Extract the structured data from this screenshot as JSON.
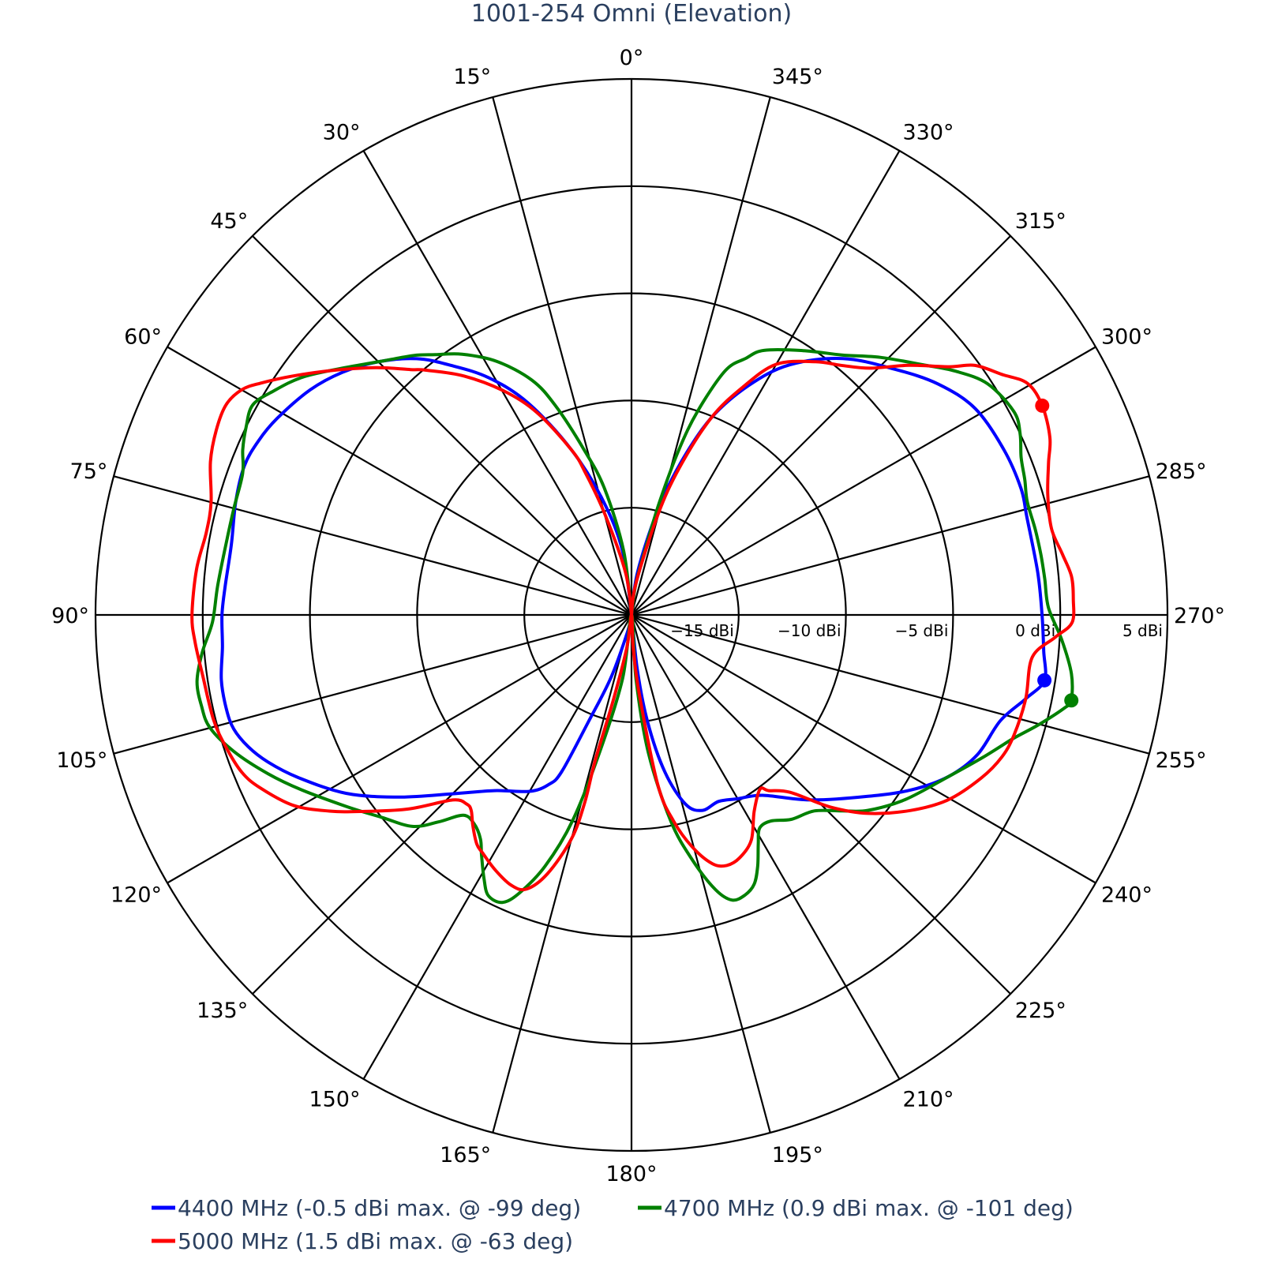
{
  "chart_data": {
    "type": "polar-line",
    "title": "1001-254 Omni (Elevation)",
    "angular_axis": {
      "direction": "counterclockwise",
      "rotation": 90,
      "tick_step_deg": 15,
      "tick_labels": [
        "0°",
        "15°",
        "30°",
        "45°",
        "60°",
        "75°",
        "90°",
        "105°",
        "120°",
        "135°",
        "150°",
        "165°",
        "180°",
        "195°",
        "210°",
        "225°",
        "240°",
        "255°",
        "270°",
        "285°",
        "300°",
        "315°",
        "330°",
        "345°"
      ]
    },
    "radial_axis": {
      "range": [
        -20,
        5
      ],
      "unit": "dBi",
      "tick_values": [
        -15,
        -10,
        -5,
        0,
        5
      ],
      "tick_labels": [
        "−15 dBi",
        "−10 dBi",
        "−5 dBi",
        "0 dBi",
        "5 dBi"
      ],
      "tick_angle_deg": 270
    },
    "grid": true,
    "legend_position": "bottom",
    "series": [
      {
        "name": "4400 MHz (-0.5 dBi max. @ -99 deg)",
        "color": "#0000ff",
        "max": {
          "angle": 261,
          "value": -0.5
        },
        "points": [
          [
            0,
            -20
          ],
          [
            8,
            -17
          ],
          [
            14,
            -14.5
          ],
          [
            20,
            -11.8
          ],
          [
            26,
            -9
          ],
          [
            31,
            -7.1
          ],
          [
            36,
            -5.6
          ],
          [
            40,
            -4.4
          ],
          [
            45,
            -3.3
          ],
          [
            50,
            -2.4
          ],
          [
            55,
            -1.7
          ],
          [
            61,
            -1.1
          ],
          [
            65,
            -0.8
          ],
          [
            69,
            -0.65
          ],
          [
            74,
            -0.8
          ],
          [
            80,
            -1.05
          ],
          [
            86,
            -1.0
          ],
          [
            90,
            -0.9
          ],
          [
            94.5,
            -0.86
          ],
          [
            99,
            -0.63
          ],
          [
            103,
            -0.6
          ],
          [
            106,
            -0.7
          ],
          [
            109,
            -1.1
          ],
          [
            112,
            -1.7
          ],
          [
            116,
            -2.7
          ],
          [
            122,
            -4.3
          ],
          [
            128,
            -6.2
          ],
          [
            135,
            -8.2
          ],
          [
            142,
            -9.6
          ],
          [
            150,
            -10.5
          ],
          [
            154,
            -11.2
          ],
          [
            156,
            -12
          ],
          [
            158,
            -14.6
          ],
          [
            162,
            -17
          ],
          [
            170,
            -19.5
          ],
          [
            180,
            -20
          ],
          [
            186,
            -17.5
          ],
          [
            188.5,
            -15
          ],
          [
            192,
            -12.5
          ],
          [
            196,
            -10.8
          ],
          [
            200,
            -10.3
          ],
          [
            205,
            -10.4
          ],
          [
            210,
            -10.1
          ],
          [
            216,
            -9.6
          ],
          [
            224,
            -8
          ],
          [
            232.5,
            -6.1
          ],
          [
            238,
            -4.6
          ],
          [
            243,
            -3.4
          ],
          [
            248,
            -2.6
          ],
          [
            254,
            -2.1
          ],
          [
            258,
            -1.2
          ],
          [
            261,
            -0.5
          ],
          [
            265,
            -0.7
          ],
          [
            270,
            -0.85
          ],
          [
            276,
            -0.95
          ],
          [
            284,
            -1.0
          ],
          [
            288,
            -0.9
          ],
          [
            294,
            -1.0
          ],
          [
            301,
            -1.3
          ],
          [
            307,
            -2.1
          ],
          [
            313,
            -3.2
          ],
          [
            320.5,
            -4.5
          ],
          [
            327.7,
            -6.2
          ],
          [
            333,
            -8
          ],
          [
            338,
            -10.1
          ],
          [
            342,
            -12.5
          ],
          [
            346,
            -15
          ],
          [
            352,
            -18
          ],
          [
            360,
            -20
          ]
        ]
      },
      {
        "name": "4700 MHz (0.9 dBi max. @ -101 deg)",
        "color": "#008000",
        "max": {
          "angle": 259,
          "value": 0.9
        },
        "points": [
          [
            0,
            -20
          ],
          [
            7,
            -17
          ],
          [
            12,
            -14
          ],
          [
            16,
            -12
          ],
          [
            20,
            -9.6
          ],
          [
            23,
            -8.1
          ],
          [
            28,
            -6.6
          ],
          [
            33,
            -5.5
          ],
          [
            37,
            -4.8
          ],
          [
            40,
            -4.2
          ],
          [
            44,
            -3.5
          ],
          [
            49,
            -2.4
          ],
          [
            54,
            -1.1
          ],
          [
            58,
            -0.3
          ],
          [
            61,
            0.2
          ],
          [
            64,
            0.0
          ],
          [
            67,
            -0.3
          ],
          [
            70,
            -0.7
          ],
          [
            75,
            -0.8
          ],
          [
            80,
            -0.8
          ],
          [
            86,
            -0.65
          ],
          [
            91,
            -0.45
          ],
          [
            95,
            0.1
          ],
          [
            98.7,
            0.5
          ],
          [
            102,
            0.5
          ],
          [
            105,
            0.35
          ],
          [
            109,
            -0.4
          ],
          [
            113.6,
            -1.5
          ],
          [
            118,
            -2.6
          ],
          [
            124,
            -4
          ],
          [
            129,
            -5
          ],
          [
            134,
            -5.8
          ],
          [
            137,
            -6.8
          ],
          [
            140,
            -7.8
          ],
          [
            143,
            -7.8
          ],
          [
            146,
            -7.4
          ],
          [
            148,
            -6.8
          ],
          [
            150.8,
            -5.9
          ],
          [
            153,
            -5.3
          ],
          [
            155.8,
            -5.3
          ],
          [
            158,
            -6
          ],
          [
            161,
            -7.6
          ],
          [
            164,
            -10
          ],
          [
            167,
            -13.5
          ],
          [
            172,
            -17
          ],
          [
            180,
            -20
          ],
          [
            184,
            -17
          ],
          [
            187,
            -13.5
          ],
          [
            190.8,
            -10.2
          ],
          [
            194,
            -8.2
          ],
          [
            197,
            -6.6
          ],
          [
            199.4,
            -5.9
          ],
          [
            202,
            -5.9
          ],
          [
            204.5,
            -6.2
          ],
          [
            206.7,
            -6.9
          ],
          [
            209,
            -7.8
          ],
          [
            211,
            -8.4
          ],
          [
            214,
            -8.4
          ],
          [
            218,
            -7.9
          ],
          [
            223,
            -7.5
          ],
          [
            227,
            -6.6
          ],
          [
            230.4,
            -5.7
          ],
          [
            236,
            -4.6
          ],
          [
            243,
            -3.4
          ],
          [
            248,
            -2.3
          ],
          [
            252,
            -1.3
          ],
          [
            255,
            -0.3
          ],
          [
            258,
            0.7
          ],
          [
            259,
            0.9
          ],
          [
            262.4,
            0.7
          ],
          [
            266.7,
            0.1
          ],
          [
            271,
            -0.55
          ],
          [
            275,
            -0.65
          ],
          [
            278.4,
            -0.7
          ],
          [
            282,
            -0.75
          ],
          [
            286,
            -0.8
          ],
          [
            289,
            -0.6
          ],
          [
            292,
            -0.4
          ],
          [
            295,
            0.0
          ],
          [
            298,
            0.2
          ],
          [
            303,
            -0.2
          ],
          [
            307,
            -1.1
          ],
          [
            310.7,
            -2.1
          ],
          [
            316,
            -3.3
          ],
          [
            321,
            -4.4
          ],
          [
            327,
            -5.3
          ],
          [
            333.4,
            -6.2
          ],
          [
            336,
            -6.9
          ],
          [
            339,
            -7.8
          ],
          [
            342,
            -10
          ],
          [
            344,
            -12
          ],
          [
            346,
            -14.5
          ],
          [
            347.7,
            -16.5
          ],
          [
            352,
            -18.5
          ],
          [
            360,
            -20
          ]
        ]
      },
      {
        "name": "5000 MHz (1.5 dBi max. @ -63 deg)",
        "color": "#ff0000",
        "max": {
          "angle": 297,
          "value": 1.5
        },
        "points": [
          [
            0,
            -20
          ],
          [
            8,
            -18
          ],
          [
            14.7,
            -15.2
          ],
          [
            18,
            -13
          ],
          [
            20,
            -11.8
          ],
          [
            25,
            -9.6
          ],
          [
            29.6,
            -8
          ],
          [
            35,
            -6.4
          ],
          [
            40,
            -5.1
          ],
          [
            42,
            -4.6
          ],
          [
            46,
            -3.4
          ],
          [
            51,
            -1.9
          ],
          [
            55,
            -0.6
          ],
          [
            58,
            0.4
          ],
          [
            60,
            1.0
          ],
          [
            62.6,
            1.3
          ],
          [
            66,
            1.2
          ],
          [
            70,
            0.9
          ],
          [
            75,
            0.3
          ],
          [
            79,
            0.2
          ],
          [
            84,
            0.4
          ],
          [
            90,
            0.5
          ],
          [
            93.5,
            0.4
          ],
          [
            98,
            0.2
          ],
          [
            104,
            0.1
          ],
          [
            108,
            -0.1
          ],
          [
            112,
            -0.4
          ],
          [
            115,
            -0.9
          ],
          [
            119.4,
            -1.9
          ],
          [
            123,
            -3.2
          ],
          [
            126,
            -4.4
          ],
          [
            131,
            -6.2
          ],
          [
            136,
            -8
          ],
          [
            139,
            -8.3
          ],
          [
            140.7,
            -8.2
          ],
          [
            143,
            -7.7
          ],
          [
            146,
            -7.1
          ],
          [
            148,
            -6.9
          ],
          [
            152,
            -6.5
          ],
          [
            156,
            -6.2
          ],
          [
            159,
            -6.3
          ],
          [
            162,
            -7.3
          ],
          [
            165,
            -9.2
          ],
          [
            166,
            -11
          ],
          [
            166,
            -13
          ],
          [
            168,
            -16
          ],
          [
            172,
            -18.5
          ],
          [
            180,
            -20
          ],
          [
            183,
            -18.5
          ],
          [
            185.6,
            -16.3
          ],
          [
            188.8,
            -12
          ],
          [
            191.5,
            -10.2
          ],
          [
            194.7,
            -8.8
          ],
          [
            198,
            -7.8
          ],
          [
            200.8,
            -7.5
          ],
          [
            204,
            -7.6
          ],
          [
            208,
            -8.1
          ],
          [
            212,
            -9.2
          ],
          [
            216.4,
            -9.9
          ],
          [
            218,
            -9.6
          ],
          [
            221.8,
            -8.9
          ],
          [
            226,
            -7.1
          ],
          [
            230,
            -5.6
          ],
          [
            235,
            -4.1
          ],
          [
            239.7,
            -2.9
          ],
          [
            245,
            -2.0
          ],
          [
            249,
            -1.5
          ],
          [
            252.6,
            -1.3
          ],
          [
            258,
            -1.2
          ],
          [
            264,
            -1.2
          ],
          [
            267,
            -0.2
          ],
          [
            269,
            0.55
          ],
          [
            272,
            0.62
          ],
          [
            275,
            0.6
          ],
          [
            278,
            0.3
          ],
          [
            281.6,
            0.0
          ],
          [
            286,
            0.2
          ],
          [
            290,
            0.7
          ],
          [
            293,
            1.2
          ],
          [
            297,
            1.5
          ],
          [
            300.3,
            1.4
          ],
          [
            303,
            0.6
          ],
          [
            306,
            -0.2
          ],
          [
            308,
            -1.2
          ],
          [
            312,
            -2.6
          ],
          [
            316,
            -4
          ],
          [
            320,
            -4.8
          ],
          [
            324,
            -5.4
          ],
          [
            330,
            -6.5
          ],
          [
            334,
            -8.2
          ],
          [
            338,
            -10.1
          ],
          [
            342,
            -12.8
          ],
          [
            345.3,
            -15.2
          ],
          [
            352,
            -18.5
          ],
          [
            360,
            -20
          ]
        ]
      }
    ]
  }
}
